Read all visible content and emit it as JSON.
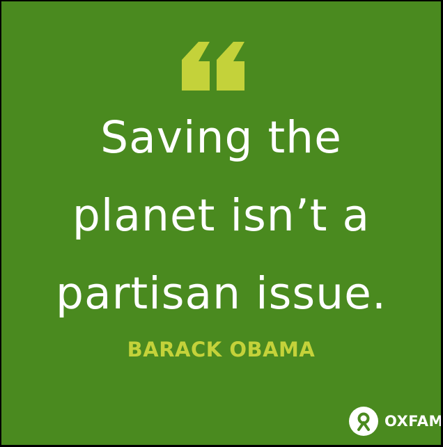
{
  "colors": {
    "background": "#4a8a1f",
    "quote_text": "#ffffff",
    "accent": "#c4d23a",
    "brand": "#ffffff"
  },
  "quote": {
    "lines": [
      "Saving the",
      "planet isn’t a",
      "partisan issue."
    ],
    "author": "BARACK OBAMA"
  },
  "icons": {
    "quote_mark": "opening-quote-icon",
    "logo": "oxfam-logo-icon"
  },
  "brand": {
    "name": "OXFAM"
  }
}
